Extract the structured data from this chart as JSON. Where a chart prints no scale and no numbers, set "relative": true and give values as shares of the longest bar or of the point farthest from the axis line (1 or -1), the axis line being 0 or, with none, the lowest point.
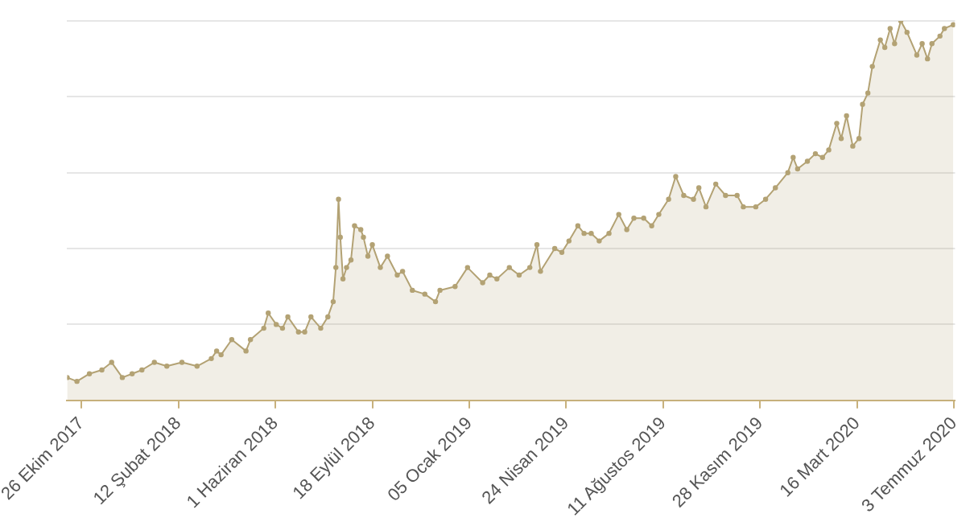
{
  "chart_data": {
    "type": "area",
    "relative": true,
    "grid": "y",
    "marker": "circle",
    "line_style": "solid",
    "legend": false,
    "xlim": [
      "2017-10-10",
      "2020-07-04"
    ],
    "xticks": [
      {
        "value": "2017-10-26",
        "label": "26 Ekim 2017"
      },
      {
        "value": "2018-02-12",
        "label": "12 Şubat 2018"
      },
      {
        "value": "2018-06-01",
        "label": "1 Haziran 2018"
      },
      {
        "value": "2018-09-18",
        "label": "18 Eylül 2018"
      },
      {
        "value": "2019-01-05",
        "label": "05 Ocak 2019"
      },
      {
        "value": "2019-04-24",
        "label": "24 Nisan 2019"
      },
      {
        "value": "2019-08-11",
        "label": "11 Ağustos 2019"
      },
      {
        "value": "2019-11-28",
        "label": "28 Kasım 2019"
      },
      {
        "value": "2020-03-16",
        "label": "16 Mart 2020"
      },
      {
        "value": "2020-07-03",
        "label": "3 Temmuz 2020"
      }
    ],
    "series": [
      {
        "color": "#b3a274",
        "x": [
          "2017-10-10",
          "2017-10-21",
          "2017-11-04",
          "2017-11-18",
          "2017-11-29",
          "2017-12-11",
          "2017-12-22",
          "2018-01-02",
          "2018-01-16",
          "2018-01-30",
          "2018-02-16",
          "2018-03-05",
          "2018-03-21",
          "2018-03-27",
          "2018-04-01",
          "2018-04-13",
          "2018-04-29",
          "2018-05-04",
          "2018-05-19",
          "2018-05-24",
          "2018-06-02",
          "2018-06-09",
          "2018-06-15",
          "2018-06-27",
          "2018-07-04",
          "2018-07-11",
          "2018-07-22",
          "2018-07-30",
          "2018-08-05",
          "2018-08-08",
          "2018-08-11",
          "2018-08-13",
          "2018-08-16",
          "2018-08-20",
          "2018-08-25",
          "2018-08-29",
          "2018-09-05",
          "2018-09-08",
          "2018-09-13",
          "2018-09-18",
          "2018-09-27",
          "2018-10-05",
          "2018-10-16",
          "2018-10-22",
          "2018-11-02",
          "2018-11-16",
          "2018-11-28",
          "2018-12-03",
          "2018-12-20",
          "2019-01-03",
          "2019-01-20",
          "2019-01-28",
          "2019-02-05",
          "2019-02-19",
          "2019-03-02",
          "2019-03-14",
          "2019-03-22",
          "2019-03-26",
          "2019-04-11",
          "2019-04-19",
          "2019-04-27",
          "2019-05-07",
          "2019-05-14",
          "2019-05-22",
          "2019-05-31",
          "2019-06-11",
          "2019-06-22",
          "2019-07-01",
          "2019-07-09",
          "2019-07-20",
          "2019-07-29",
          "2019-08-06",
          "2019-08-17",
          "2019-08-25",
          "2019-09-03",
          "2019-09-14",
          "2019-09-20",
          "2019-09-28",
          "2019-10-09",
          "2019-10-20",
          "2019-11-02",
          "2019-11-09",
          "2019-11-23",
          "2019-12-04",
          "2019-12-15",
          "2019-12-29",
          "2020-01-04",
          "2020-01-09",
          "2020-01-20",
          "2020-01-29",
          "2020-02-06",
          "2020-02-13",
          "2020-02-22",
          "2020-02-27",
          "2020-03-04",
          "2020-03-11",
          "2020-03-18",
          "2020-03-22",
          "2020-03-28",
          "2020-04-02",
          "2020-04-11",
          "2020-04-16",
          "2020-04-22",
          "2020-04-27",
          "2020-05-04",
          "2020-05-11",
          "2020-05-22",
          "2020-05-28",
          "2020-06-03",
          "2020-06-08",
          "2020-06-17",
          "2020-06-22",
          "2020-07-02"
        ],
        "values": [
          0.06,
          0.05,
          0.07,
          0.08,
          0.1,
          0.06,
          0.07,
          0.08,
          0.1,
          0.09,
          0.1,
          0.09,
          0.11,
          0.13,
          0.12,
          0.16,
          0.13,
          0.16,
          0.19,
          0.23,
          0.2,
          0.19,
          0.22,
          0.18,
          0.18,
          0.22,
          0.19,
          0.22,
          0.26,
          0.35,
          0.53,
          0.43,
          0.32,
          0.35,
          0.37,
          0.46,
          0.45,
          0.43,
          0.38,
          0.41,
          0.35,
          0.38,
          0.33,
          0.34,
          0.29,
          0.28,
          0.26,
          0.29,
          0.3,
          0.35,
          0.31,
          0.33,
          0.32,
          0.35,
          0.33,
          0.35,
          0.41,
          0.34,
          0.4,
          0.39,
          0.42,
          0.46,
          0.44,
          0.44,
          0.42,
          0.44,
          0.49,
          0.45,
          0.48,
          0.48,
          0.46,
          0.49,
          0.53,
          0.59,
          0.54,
          0.53,
          0.56,
          0.51,
          0.57,
          0.54,
          0.54,
          0.51,
          0.51,
          0.53,
          0.56,
          0.6,
          0.64,
          0.61,
          0.63,
          0.65,
          0.64,
          0.66,
          0.73,
          0.69,
          0.75,
          0.67,
          0.69,
          0.78,
          0.81,
          0.88,
          0.95,
          0.93,
          0.98,
          0.94,
          1.0,
          0.97,
          0.91,
          0.94,
          0.9,
          0.94,
          0.96,
          0.98,
          0.99
        ]
      }
    ]
  }
}
